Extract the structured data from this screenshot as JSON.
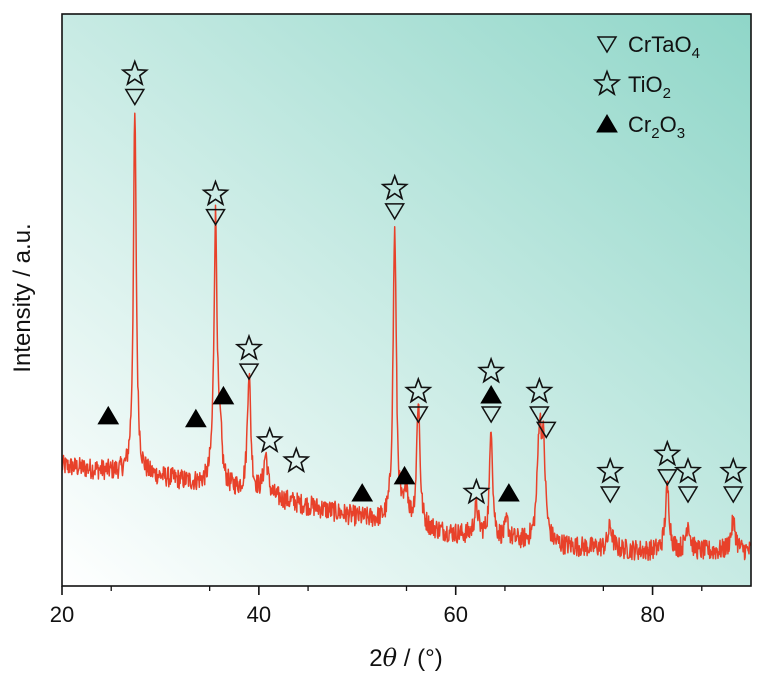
{
  "chart_data": {
    "type": "line",
    "xlabel_prefix": "2",
    "xlabel_theta": "θ",
    "xlabel_suffix": " / (°)",
    "ylabel": "Intensity / a.u.",
    "xlim": [
      20,
      90
    ],
    "ylim": [
      0,
      100
    ],
    "x_ticks": [
      20,
      40,
      60,
      80
    ],
    "y_ticks_shown": false,
    "grid": false,
    "line_color": "#e8412a",
    "background_gradient": [
      "#ffffff",
      "#8fd6c8"
    ],
    "legend_placement": "top-right",
    "legend": [
      {
        "symbol": "triangle-down-open",
        "label_main": "CrTaO",
        "label_sub": "4"
      },
      {
        "symbol": "star-open",
        "label_main": "TiO",
        "label_sub": "2"
      },
      {
        "symbol": "triangle-up-filled",
        "label_main": "Cr",
        "label_sub": "2",
        "label_main2": "O",
        "label_sub2": "3"
      }
    ],
    "baseline": [
      [
        20,
        21
      ],
      [
        30,
        19
      ],
      [
        40,
        16
      ],
      [
        50,
        12
      ],
      [
        60,
        9
      ],
      [
        70,
        7
      ],
      [
        80,
        6
      ],
      [
        90,
        6
      ]
    ],
    "peaks": [
      {
        "x": 27.4,
        "height": 63,
        "width": 0.18
      },
      {
        "x": 35.6,
        "height": 47,
        "width": 0.2
      },
      {
        "x": 36.1,
        "height": 6,
        "width": 0.2
      },
      {
        "x": 39.0,
        "height": 21,
        "width": 0.2
      },
      {
        "x": 40.7,
        "height": 7,
        "width": 0.25
      },
      {
        "x": 53.8,
        "height": 51,
        "width": 0.2
      },
      {
        "x": 55.0,
        "height": 6,
        "width": 0.2
      },
      {
        "x": 56.2,
        "height": 22,
        "width": 0.2
      },
      {
        "x": 62.1,
        "height": 5,
        "width": 0.25
      },
      {
        "x": 63.6,
        "height": 20,
        "width": 0.18
      },
      {
        "x": 65.2,
        "height": 3,
        "width": 0.2
      },
      {
        "x": 68.5,
        "height": 18,
        "width": 0.25
      },
      {
        "x": 68.9,
        "height": 15,
        "width": 0.25
      },
      {
        "x": 75.7,
        "height": 4,
        "width": 0.25
      },
      {
        "x": 81.5,
        "height": 11,
        "width": 0.25
      },
      {
        "x": 83.6,
        "height": 5,
        "width": 0.25
      },
      {
        "x": 88.2,
        "height": 5,
        "width": 0.3
      }
    ],
    "markers": [
      {
        "x": 27.4,
        "y": 84,
        "stack": [
          "triangle-down-open",
          "star-open"
        ]
      },
      {
        "x": 35.6,
        "y": 63,
        "stack": [
          "triangle-down-open",
          "star-open"
        ]
      },
      {
        "x": 39.0,
        "y": 36,
        "stack": [
          "triangle-down-open",
          "star-open"
        ]
      },
      {
        "x": 53.8,
        "y": 64,
        "stack": [
          "triangle-down-open",
          "star-open"
        ]
      },
      {
        "x": 56.2,
        "y": 28.5,
        "stack": [
          "triangle-down-open",
          "star-open"
        ]
      },
      {
        "x": 63.6,
        "y": 28.5,
        "stack": [
          "triangle-down-open",
          "triangle-up-filled",
          "star-open"
        ]
      },
      {
        "x": 68.5,
        "y": 28.5,
        "stack": [
          "triangle-down-open",
          "star-open"
        ]
      },
      {
        "x": 69.2,
        "y": 25.8,
        "stack": [
          "triangle-down-open"
        ]
      },
      {
        "x": 75.7,
        "y": 14.5,
        "stack": [
          "triangle-down-open",
          "star-open"
        ]
      },
      {
        "x": 81.5,
        "y": 17.5,
        "stack": [
          "triangle-down-open",
          "star-open"
        ]
      },
      {
        "x": 83.6,
        "y": 14.5,
        "stack": [
          "triangle-down-open",
          "star-open"
        ]
      },
      {
        "x": 88.2,
        "y": 14.5,
        "stack": [
          "triangle-down-open",
          "star-open"
        ]
      },
      {
        "x": 41.1,
        "y": 23,
        "stack": [
          "star-open"
        ]
      },
      {
        "x": 43.8,
        "y": 19.5,
        "stack": [
          "star-open"
        ]
      },
      {
        "x": 62.1,
        "y": 14,
        "stack": [
          "star-open"
        ]
      },
      {
        "x": 24.7,
        "y": 28,
        "stack": [
          "triangle-up-filled"
        ]
      },
      {
        "x": 33.6,
        "y": 27.5,
        "stack": [
          "triangle-up-filled"
        ]
      },
      {
        "x": 36.4,
        "y": 31.5,
        "stack": [
          "triangle-up-filled"
        ]
      },
      {
        "x": 50.5,
        "y": 14.5,
        "stack": [
          "triangle-up-filled"
        ]
      },
      {
        "x": 54.8,
        "y": 17.5,
        "stack": [
          "triangle-up-filled"
        ]
      },
      {
        "x": 65.4,
        "y": 14.5,
        "stack": [
          "triangle-up-filled"
        ]
      }
    ]
  }
}
